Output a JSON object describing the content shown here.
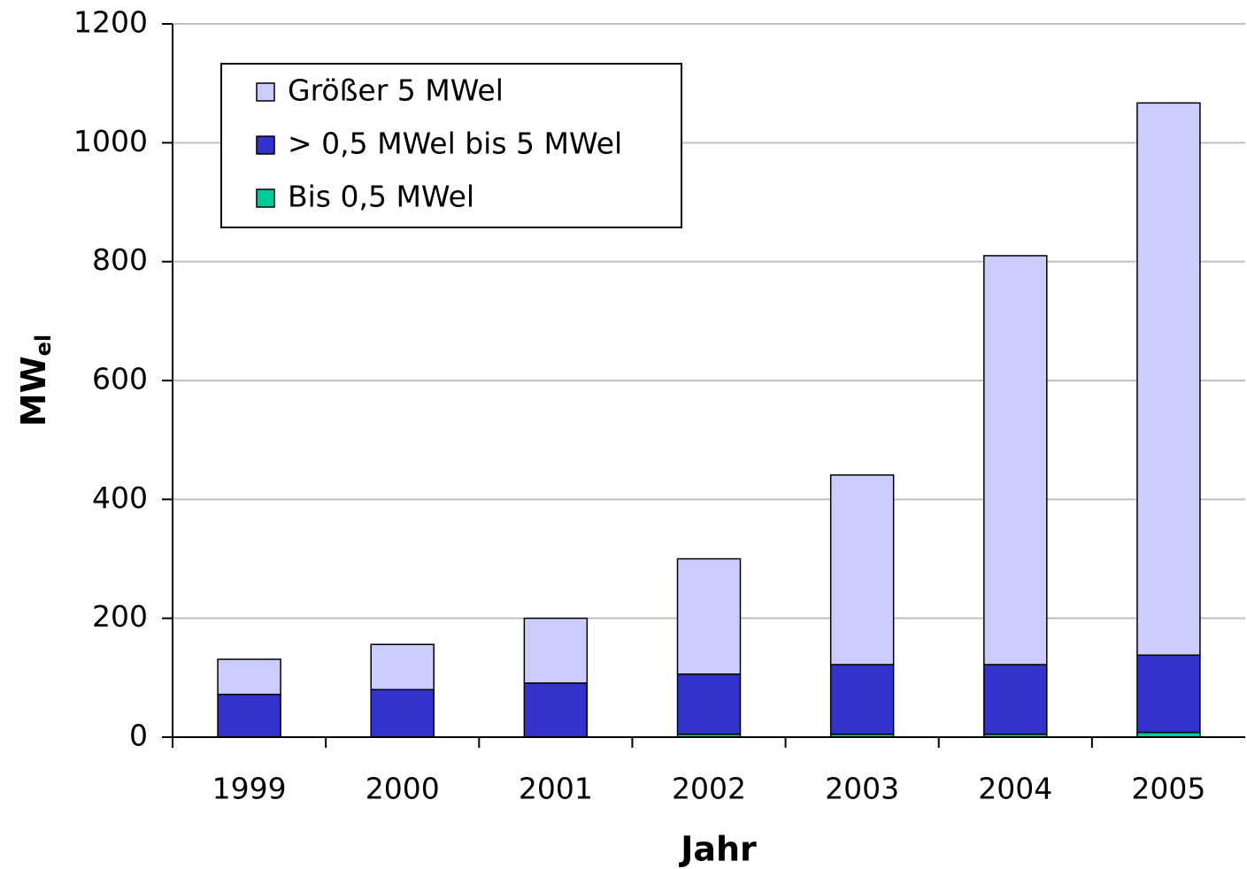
{
  "chart_data": {
    "type": "stacked_bar",
    "xlabel": "Jahr",
    "ylabel": "MW",
    "ylabel_sub": "el",
    "categories": [
      "1999",
      "2000",
      "2001",
      "2002",
      "2003",
      "2004",
      "2005"
    ],
    "series": [
      {
        "name": "Bis 0,5 MWel",
        "color": "#00cc99",
        "values": [
          0,
          0,
          0,
          5,
          5,
          5,
          8
        ]
      },
      {
        "name": "> 0,5 MWel bis 5 MWel",
        "color": "#3333cc",
        "values": [
          72,
          80,
          91,
          101,
          117,
          117,
          130
        ]
      },
      {
        "name": "Größer 5 MWel",
        "color": "#ccccff",
        "values": [
          59,
          76,
          109,
          194,
          319,
          688,
          929
        ]
      }
    ],
    "ylim": [
      0,
      1200
    ],
    "yticks": [
      0,
      200,
      400,
      600,
      800,
      1000,
      1200
    ],
    "grid": true,
    "legend": "upper left"
  }
}
